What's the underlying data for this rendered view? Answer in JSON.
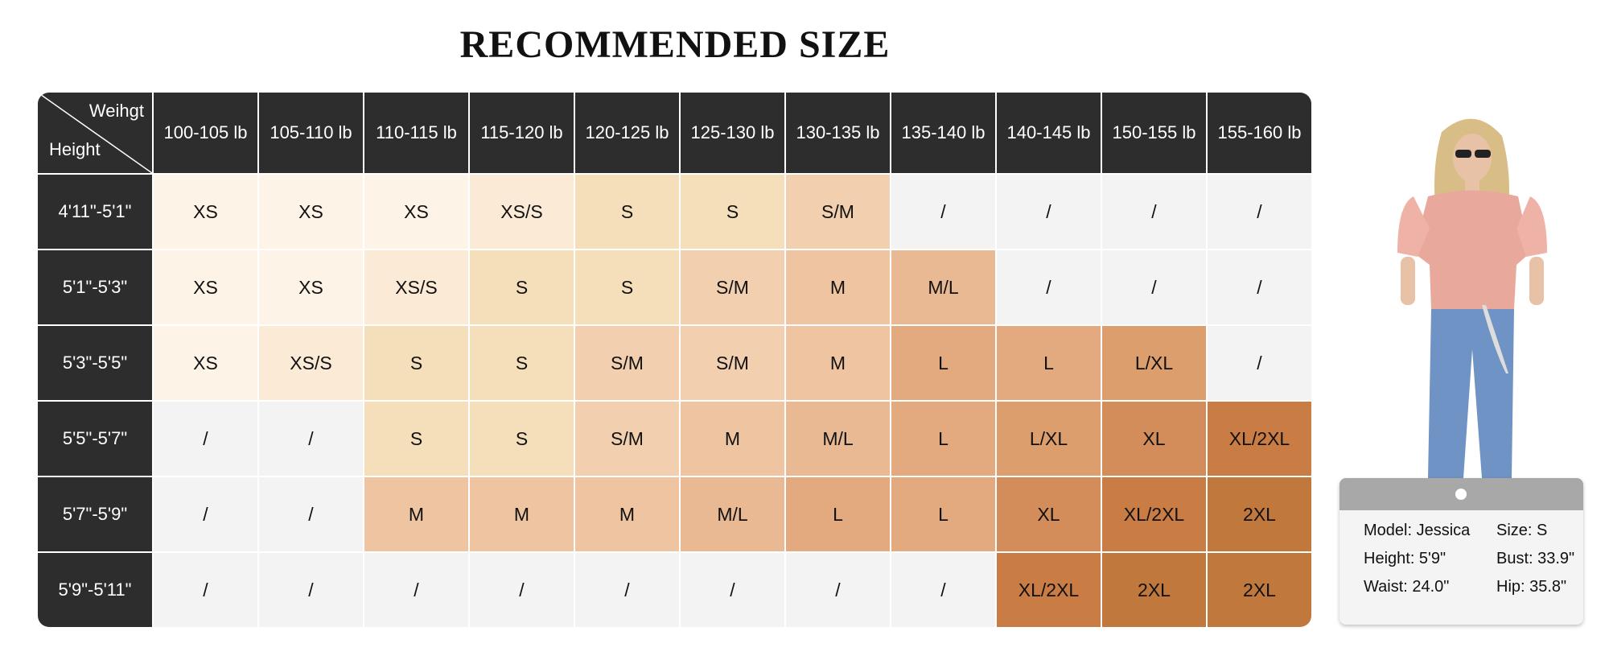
{
  "title": "RECOMMENDED SIZE",
  "table": {
    "corner": {
      "top": "Weihgt",
      "bottom": "Height"
    },
    "columns": [
      "100-105 lb",
      "105-110 lb",
      "110-115 lb",
      "115-120 lb",
      "120-125 lb",
      "125-130 lb",
      "130-135 lb",
      "135-140 lb",
      "140-145 lb",
      "150-155 lb",
      "155-160 lb"
    ],
    "rows": [
      {
        "height": "4'11\"-5'1\"",
        "cells": [
          "XS",
          "XS",
          "XS",
          "XS/S",
          "S",
          "S",
          "S/M",
          "/",
          "/",
          "/",
          "/"
        ],
        "colors": [
          "#fdf3e6",
          "#fdf3e6",
          "#fdf3e6",
          "#fbead5",
          "#f5dfbb",
          "#f5dfbb",
          "#f2cfae",
          "#f3f3f3",
          "#f3f3f3",
          "#f3f3f3",
          "#f3f3f3"
        ]
      },
      {
        "height": "5'1\"-5'3\"",
        "cells": [
          "XS",
          "XS",
          "XS/S",
          "S",
          "S",
          "S/M",
          "M",
          "M/L",
          "/",
          "/",
          "/"
        ],
        "colors": [
          "#fdf3e6",
          "#fdf3e6",
          "#fbead5",
          "#f5dfbb",
          "#f5dfbb",
          "#f2cfae",
          "#efc4a0",
          "#e9b993",
          "#f3f3f3",
          "#f3f3f3",
          "#f3f3f3"
        ]
      },
      {
        "height": "5'3\"-5'5\"",
        "cells": [
          "XS",
          "XS/S",
          "S",
          "S",
          "S/M",
          "S/M",
          "M",
          "L",
          "L",
          "L/XL",
          "/"
        ],
        "colors": [
          "#fdf3e6",
          "#fbead5",
          "#f5dfbb",
          "#f5dfbb",
          "#f2cfae",
          "#f2cfae",
          "#efc4a0",
          "#e3aa80",
          "#e3aa80",
          "#dc9e6d",
          "#f3f3f3"
        ]
      },
      {
        "height": "5'5\"-5'7\"",
        "cells": [
          "/",
          "/",
          "S",
          "S",
          "S/M",
          "M",
          "M/L",
          "L",
          "L/XL",
          "XL",
          "XL/2XL"
        ],
        "colors": [
          "#f3f3f3",
          "#f3f3f3",
          "#f5dfbb",
          "#f5dfbb",
          "#f2cfae",
          "#efc4a0",
          "#e9b993",
          "#e3aa80",
          "#dc9e6d",
          "#d38d5a",
          "#c97d45"
        ]
      },
      {
        "height": "5'7\"-5'9\"",
        "cells": [
          "/",
          "/",
          "M",
          "M",
          "M",
          "M/L",
          "L",
          "L",
          "XL",
          "XL/2XL",
          "2XL"
        ],
        "colors": [
          "#f3f3f3",
          "#f3f3f3",
          "#efc4a0",
          "#efc4a0",
          "#efc4a0",
          "#e9b993",
          "#e3aa80",
          "#e3aa80",
          "#d38d5a",
          "#c97d45",
          "#c0783c"
        ]
      },
      {
        "height": "5'9\"-5'11\"",
        "cells": [
          "/",
          "/",
          "/",
          "/",
          "/",
          "/",
          "/",
          "/",
          "XL/2XL",
          "2XL",
          "2XL"
        ],
        "colors": [
          "#f3f3f3",
          "#f3f3f3",
          "#f3f3f3",
          "#f3f3f3",
          "#f3f3f3",
          "#f3f3f3",
          "#f3f3f3",
          "#f3f3f3",
          "#c97d45",
          "#c0783c",
          "#c0783c"
        ]
      }
    ]
  },
  "model": {
    "info": [
      [
        "Model: Jessica",
        "Size: S"
      ],
      [
        "Height: 5'9\"",
        "Bust: 33.9\""
      ],
      [
        "Waist: 24.0\"",
        "Hip: 35.8\""
      ]
    ]
  }
}
